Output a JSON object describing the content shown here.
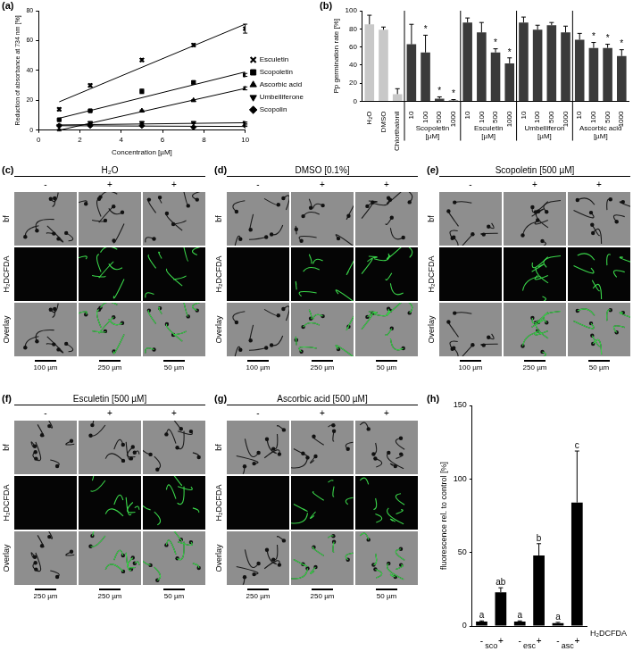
{
  "chart_data": [
    {
      "panel": "(a)",
      "type": "scatter",
      "x_label": "Concentration [µM]",
      "y_label": "Reduction of absorbance at 734 nm [%]",
      "xlim": [
        0,
        10
      ],
      "xticks": [
        0,
        2,
        4,
        6,
        8,
        10
      ],
      "ylim": [
        0,
        80
      ],
      "yticks": [
        0,
        20,
        40,
        60,
        80
      ],
      "grid": false,
      "legend": "right",
      "x": [
        1,
        2.5,
        5,
        7.5,
        10
      ],
      "series": [
        {
          "name": "Esculetin",
          "color": "#000000",
          "marker": "x",
          "values": [
            14,
            30,
            47,
            57,
            68
          ],
          "errors": [
            1,
            1,
            1,
            1,
            3
          ],
          "fit": {
            "x": [
              1,
              10
            ],
            "values": [
              19,
              71
            ]
          }
        },
        {
          "name": "Scopoletin",
          "color": "#000000",
          "marker": "square",
          "values": [
            7,
            13,
            26,
            32,
            37
          ],
          "errors": [
            0.5,
            0.5,
            1.5,
            1,
            1
          ],
          "fit": {
            "x": [
              1,
              10
            ],
            "values": [
              8,
              39
            ]
          }
        },
        {
          "name": "Ascorbic acid",
          "color": "#000000",
          "marker": "triangle",
          "values": [
            0,
            4,
            13,
            20,
            28
          ],
          "errors": [
            0.5,
            0.5,
            0.5,
            0.5,
            1
          ],
          "fit": {
            "x": [
              1,
              10
            ],
            "values": [
              0,
              28
            ]
          }
        },
        {
          "name": "Umbelliferone",
          "color": "#000000",
          "marker": "triangle_down",
          "values": [
            3,
            5,
            5,
            5,
            5
          ],
          "errors": [
            0.5,
            0.5,
            0.5,
            0.5,
            0.5
          ],
          "fit": {
            "x": [
              1,
              10
            ],
            "values": [
              3.5,
              5
            ]
          }
        },
        {
          "name": "Scopolin",
          "color": "#000000",
          "marker": "diamond",
          "values": [
            3,
            3,
            3,
            2,
            3
          ],
          "errors": [
            0.5,
            0.5,
            0.5,
            0.5,
            0.5
          ],
          "fit": {
            "x": [
              1,
              10
            ],
            "values": [
              3,
              2.5
            ]
          }
        }
      ]
    },
    {
      "panel": "(b)",
      "type": "bar",
      "y_label": "Pp germination rate [%]",
      "ylim": [
        0,
        100
      ],
      "yticks": [
        0,
        20,
        40,
        60,
        80,
        100
      ],
      "grid": false,
      "categories": [
        "H₂O",
        "DMSO",
        "Chlorthalonil",
        "10",
        "100",
        "500",
        "1000",
        "10",
        "100",
        "500",
        "1000",
        "10",
        "100",
        "500",
        "1000",
        "10",
        "100",
        "500",
        "1000"
      ],
      "values": [
        85,
        79,
        8,
        63,
        54,
        3,
        1,
        87,
        76,
        54,
        42,
        87,
        79,
        84,
        76,
        68,
        59,
        59,
        50
      ],
      "errors": [
        10,
        3,
        6,
        22,
        19,
        2,
        1,
        5,
        11,
        4,
        6,
        6,
        5,
        3,
        7,
        7,
        6,
        4,
        7
      ],
      "colors": [
        "#c8c8c8",
        "#c8c8c8",
        "#c8c8c8",
        "#3a3a3a",
        "#3a3a3a",
        "#3a3a3a",
        "#3a3a3a",
        "#3a3a3a",
        "#3a3a3a",
        "#3a3a3a",
        "#3a3a3a",
        "#3a3a3a",
        "#3a3a3a",
        "#3a3a3a",
        "#3a3a3a",
        "#3a3a3a",
        "#3a3a3a",
        "#3a3a3a",
        "#3a3a3a"
      ],
      "groups": [
        {
          "label": "Scopoletin [µM]",
          "start": 3,
          "end": 6
        },
        {
          "label": "Esculetin [µM]",
          "start": 7,
          "end": 10
        },
        {
          "label": "Umbelliferon [µM]",
          "start": 11,
          "end": 14
        },
        {
          "label": "Ascorbic acid [µM]",
          "start": 15,
          "end": 18
        }
      ],
      "annotations": [
        {
          "index": 4,
          "text": "*"
        },
        {
          "index": 5,
          "text": "*"
        },
        {
          "index": 6,
          "text": "*"
        },
        {
          "index": 9,
          "text": "*"
        },
        {
          "index": 10,
          "text": "*"
        },
        {
          "index": 16,
          "text": "*"
        },
        {
          "index": 17,
          "text": "*"
        },
        {
          "index": 18,
          "text": "*"
        }
      ]
    },
    {
      "panel": "(h)",
      "type": "bar",
      "y_label": "fluorescence rel. to control [%]",
      "ylim": [
        0,
        150
      ],
      "yticks": [
        0,
        50,
        100,
        150
      ],
      "grid": false,
      "categories": [
        "-",
        "+",
        "-",
        "+",
        "-",
        "+"
      ],
      "values": [
        3,
        23,
        3,
        48,
        2,
        84
      ],
      "errors": [
        0.5,
        3,
        0.5,
        8,
        0.5,
        35
      ],
      "color": "#000000",
      "groups": [
        {
          "label": "sco",
          "start": 0,
          "end": 1
        },
        {
          "label": "esc",
          "start": 2,
          "end": 3
        },
        {
          "label": "asc",
          "start": 4,
          "end": 5
        }
      ],
      "row_label": "H₂DCFDA",
      "annotations": [
        {
          "index": 0,
          "text": "a"
        },
        {
          "index": 1,
          "text": "ab"
        },
        {
          "index": 2,
          "text": "a"
        },
        {
          "index": 3,
          "text": "b"
        },
        {
          "index": 4,
          "text": "a"
        },
        {
          "index": 5,
          "text": "c"
        }
      ]
    }
  ],
  "image_panels": [
    {
      "panel": "(c)",
      "title": "H₂O",
      "columns": [
        "-",
        "+",
        "+"
      ],
      "rows": [
        "bf",
        "H₂DCFDA",
        "Overlay"
      ],
      "scale_bars": [
        "100 µm",
        "250 µm",
        "50 µm"
      ]
    },
    {
      "panel": "(d)",
      "title": "DMSO [0.1%]",
      "columns": [
        "-",
        "+",
        "+"
      ],
      "rows": [
        "bf",
        "H₂DCFDA",
        "Overlay"
      ],
      "scale_bars": [
        "100 µm",
        "250 µm",
        "50 µm"
      ]
    },
    {
      "panel": "(e)",
      "title": "Scopoletin [500 µM]",
      "columns": [
        "-",
        "+",
        "+"
      ],
      "rows": [
        "bf",
        "H₂DCFDA",
        "Overlay"
      ],
      "scale_bars": [
        "100 µm",
        "250 µm",
        "50 µm"
      ]
    },
    {
      "panel": "(f)",
      "title": "Esculetin [500 µM]",
      "columns": [
        "-",
        "+",
        "+"
      ],
      "rows": [
        "bf",
        "H₂DCFDA",
        "Overlay"
      ],
      "scale_bars": [
        "250 µm",
        "250 µm",
        "50 µm"
      ]
    },
    {
      "panel": "(g)",
      "title": "Ascorbic acid [500 µM]",
      "columns": [
        "-",
        "+",
        "+"
      ],
      "rows": [
        "bf",
        "H₂DCFDA",
        "Overlay"
      ],
      "scale_bars": [
        "250 µm",
        "250 µm",
        "50 µm"
      ]
    }
  ]
}
